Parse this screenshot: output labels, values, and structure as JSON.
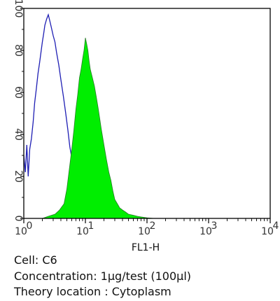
{
  "chart_data": {
    "type": "area",
    "xlabel": "FL1-H",
    "xscale": "log",
    "xlim": [
      1,
      10000
    ],
    "ylim": [
      0,
      100
    ],
    "y_ticks": [
      "0",
      "20",
      "40",
      "60",
      "80",
      "100"
    ],
    "x_tick_bases": [
      "10",
      "10",
      "10",
      "10",
      "10"
    ],
    "x_tick_exponents": [
      "0",
      "1",
      "2",
      "3",
      "4"
    ],
    "series": [
      {
        "style": "outline",
        "color": "#1f1fb4",
        "points": [
          [
            1.0,
            30
          ],
          [
            1.06,
            22
          ],
          [
            1.12,
            35
          ],
          [
            1.18,
            20
          ],
          [
            1.25,
            33
          ],
          [
            1.33,
            38
          ],
          [
            1.42,
            46
          ],
          [
            1.5,
            55
          ],
          [
            1.6,
            62
          ],
          [
            1.7,
            69
          ],
          [
            1.8,
            74
          ],
          [
            1.9,
            79
          ],
          [
            2.0,
            84
          ],
          [
            2.1,
            88
          ],
          [
            2.2,
            92
          ],
          [
            2.35,
            95
          ],
          [
            2.5,
            97
          ],
          [
            2.65,
            94
          ],
          [
            2.8,
            91
          ],
          [
            3.0,
            87
          ],
          [
            3.2,
            84
          ],
          [
            3.4,
            79
          ],
          [
            3.7,
            73
          ],
          [
            4.0,
            66
          ],
          [
            4.4,
            58
          ],
          [
            4.8,
            50
          ],
          [
            5.2,
            42
          ],
          [
            5.6,
            34
          ],
          [
            6.0,
            29
          ],
          [
            6.5,
            25
          ],
          [
            7.0,
            22
          ],
          [
            7.5,
            20
          ],
          [
            8.0,
            21
          ],
          [
            8.5,
            35
          ],
          [
            9.0,
            48
          ],
          [
            9.5,
            55
          ],
          [
            10.5,
            40
          ],
          [
            11.5,
            12
          ],
          [
            12.5,
            4
          ],
          [
            14,
            1.5
          ],
          [
            17,
            0.5
          ],
          [
            20,
            0
          ]
        ]
      },
      {
        "style": "filled",
        "color": "#00ee00",
        "points": [
          [
            1.0,
            0
          ],
          [
            2.0,
            0
          ],
          [
            2.5,
            1
          ],
          [
            3.2,
            2
          ],
          [
            3.8,
            4
          ],
          [
            4.5,
            7
          ],
          [
            5.0,
            14
          ],
          [
            5.5,
            24
          ],
          [
            6.0,
            33
          ],
          [
            6.5,
            42
          ],
          [
            7.0,
            52
          ],
          [
            7.5,
            59
          ],
          [
            8.0,
            67
          ],
          [
            8.5,
            71
          ],
          [
            9.0,
            76
          ],
          [
            9.5,
            80
          ],
          [
            10.0,
            86
          ],
          [
            10.5,
            83
          ],
          [
            11.0,
            80
          ],
          [
            11.5,
            75
          ],
          [
            12.0,
            71
          ],
          [
            13.0,
            67
          ],
          [
            14.0,
            63
          ],
          [
            15.0,
            58
          ],
          [
            16.0,
            53
          ],
          [
            17.0,
            48
          ],
          [
            18.0,
            43
          ],
          [
            19.0,
            39
          ],
          [
            20.0,
            35
          ],
          [
            22.0,
            28
          ],
          [
            24.0,
            22
          ],
          [
            26.0,
            18
          ],
          [
            28.0,
            13
          ],
          [
            30.0,
            9
          ],
          [
            33.0,
            7
          ],
          [
            36.0,
            5
          ],
          [
            40.0,
            4
          ],
          [
            45.0,
            3
          ],
          [
            50.0,
            2
          ],
          [
            60.0,
            1.5
          ],
          [
            70.0,
            1
          ],
          [
            80.0,
            0.7
          ],
          [
            100,
            0.3
          ],
          [
            130,
            0
          ],
          [
            10000,
            0
          ]
        ]
      }
    ]
  },
  "caption": {
    "cell": "Cell: C6",
    "concentration": "Concentration: 1μg/test (100μl)",
    "location": "Theory location : Cytoplasm"
  }
}
